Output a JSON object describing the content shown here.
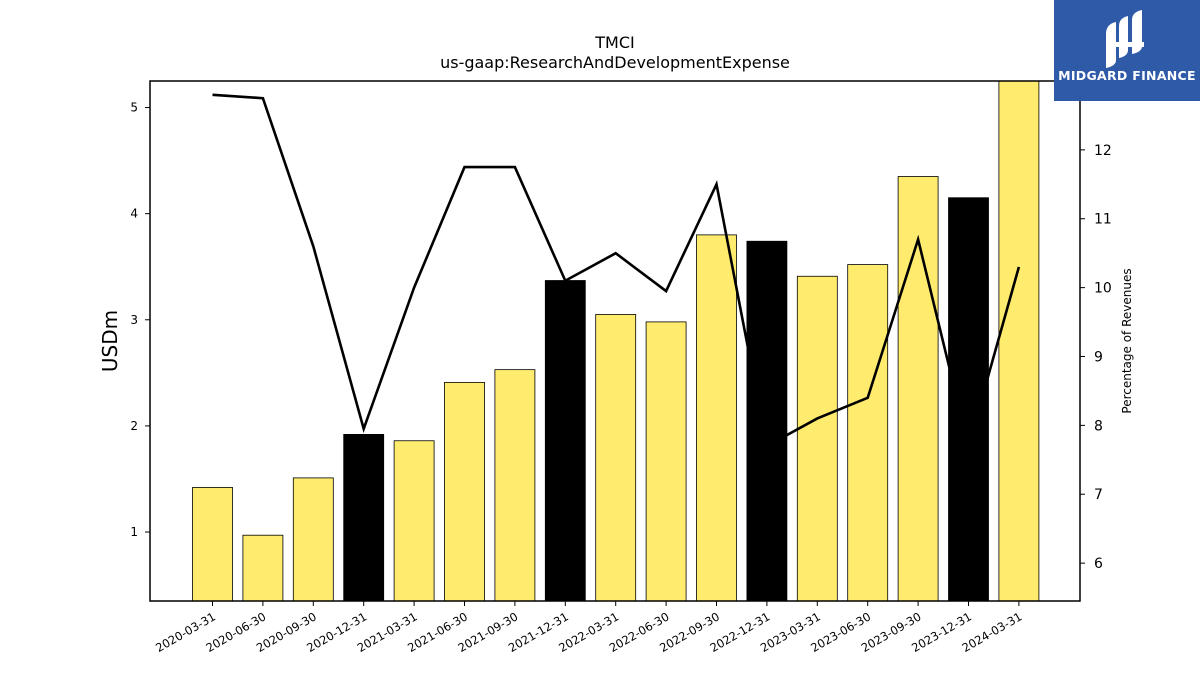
{
  "chart_data": {
    "type": "bar",
    "title": "TMCI",
    "subtitle": "us-gaap:ResearchAndDevelopmentExpense",
    "ylabel": "USDm",
    "y2label": "Percentage of Revenues",
    "ylim": [
      0.35,
      5.25
    ],
    "y2lim": [
      5.45,
      13.0
    ],
    "yticks": [
      1,
      2,
      3,
      4,
      5
    ],
    "y2ticks": [
      6,
      7,
      8,
      9,
      10,
      11,
      12
    ],
    "categories": [
      "2020-03-31",
      "2020-06-30",
      "2020-09-30",
      "2020-12-31",
      "2021-03-31",
      "2021-06-30",
      "2021-09-30",
      "2021-12-31",
      "2022-03-31",
      "2022-06-30",
      "2022-09-30",
      "2022-12-31",
      "2023-03-31",
      "2023-06-30",
      "2023-09-30",
      "2023-12-31",
      "2024-03-31"
    ],
    "series": [
      {
        "kind": "bar",
        "axis": "left",
        "values": [
          1.42,
          0.97,
          1.51,
          1.92,
          1.86,
          2.41,
          2.53,
          3.37,
          3.05,
          2.98,
          3.8,
          3.74,
          3.41,
          3.52,
          4.35,
          4.15,
          5.3
        ],
        "colors": [
          "#ffec6e",
          "#ffec6e",
          "#ffec6e",
          "#000000",
          "#ffec6e",
          "#ffec6e",
          "#ffec6e",
          "#000000",
          "#ffec6e",
          "#ffec6e",
          "#ffec6e",
          "#000000",
          "#ffec6e",
          "#ffec6e",
          "#ffec6e",
          "#000000",
          "#ffec6e"
        ]
      },
      {
        "kind": "line",
        "axis": "right",
        "color": "#000000",
        "values": [
          12.8,
          12.75,
          10.6,
          7.95,
          10.0,
          11.75,
          11.75,
          10.1,
          10.5,
          9.95,
          11.5,
          7.7,
          8.1,
          8.4,
          10.7,
          7.7,
          10.3
        ]
      }
    ],
    "grid": false,
    "legend": "none"
  },
  "logo": {
    "text": "MIDGARD FINANCE",
    "color": "#2f5aa8"
  }
}
